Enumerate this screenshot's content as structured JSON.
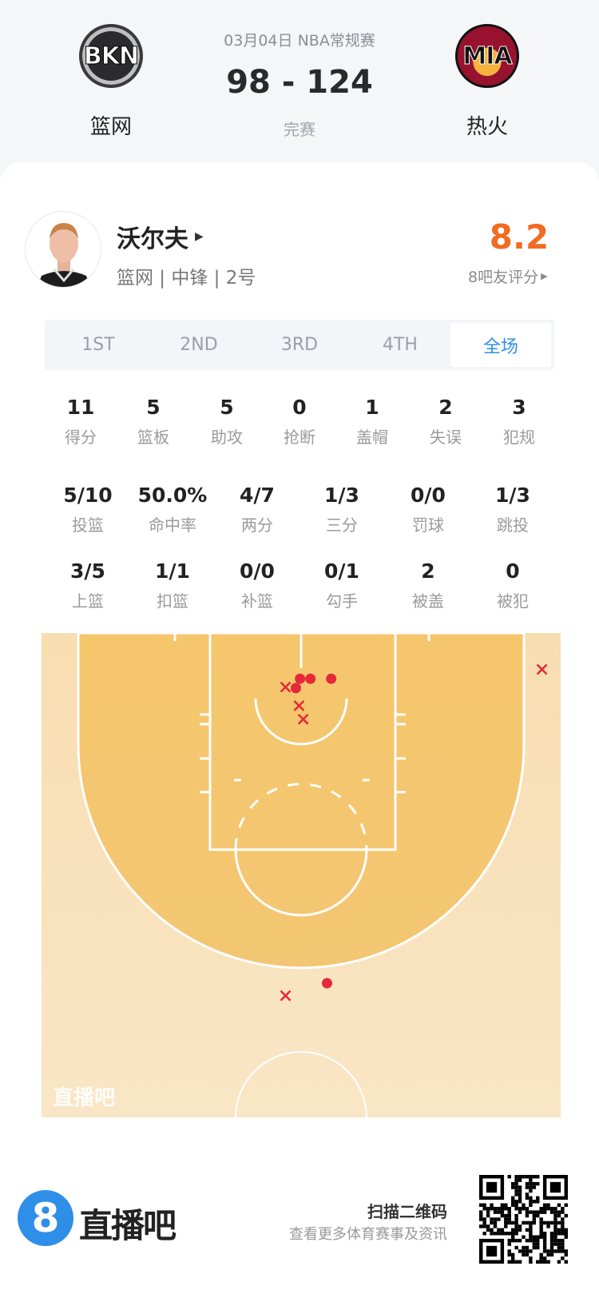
{
  "header": {
    "date_league": "03月04日 NBA常规赛",
    "score": "98 - 124",
    "status": "完赛",
    "home": {
      "abbr": "BKN",
      "name": "篮网"
    },
    "away": {
      "abbr": "MIA",
      "name": "热火"
    }
  },
  "player": {
    "name": "沃尔夫",
    "meta": "篮网 | 中锋 | 2号",
    "rating": "8.2",
    "rating_label": "8吧友评分",
    "rating_color": "#f26b21"
  },
  "tabs": [
    {
      "label": "1ST"
    },
    {
      "label": "2ND"
    },
    {
      "label": "3RD"
    },
    {
      "label": "4TH"
    },
    {
      "label": "全场",
      "active": true
    }
  ],
  "stats_row1": [
    {
      "v": "11",
      "l": "得分"
    },
    {
      "v": "5",
      "l": "篮板"
    },
    {
      "v": "5",
      "l": "助攻"
    },
    {
      "v": "0",
      "l": "抢断"
    },
    {
      "v": "1",
      "l": "盖帽"
    },
    {
      "v": "2",
      "l": "失误"
    },
    {
      "v": "3",
      "l": "犯规"
    }
  ],
  "stats_row2": [
    {
      "v": "5/10",
      "l": "投篮"
    },
    {
      "v": "50.0%",
      "l": "命中率"
    },
    {
      "v": "4/7",
      "l": "两分"
    },
    {
      "v": "1/3",
      "l": "三分"
    },
    {
      "v": "0/0",
      "l": "罚球"
    },
    {
      "v": "1/3",
      "l": "跳投"
    }
  ],
  "stats_row3": [
    {
      "v": "3/5",
      "l": "上篮"
    },
    {
      "v": "1/1",
      "l": "扣篮"
    },
    {
      "v": "0/0",
      "l": "补篮"
    },
    {
      "v": "0/1",
      "l": "勾手"
    },
    {
      "v": "2",
      "l": "被盖"
    },
    {
      "v": "0",
      "l": "被犯"
    }
  ],
  "shot_chart": {
    "watermark": "直播吧",
    "made_color": "#e5283a",
    "units": "feet from left sideline / baseline",
    "shots": [
      {
        "made": true,
        "x": 24.9,
        "y": 4.4
      },
      {
        "made": true,
        "x": 25.9,
        "y": 4.4
      },
      {
        "made": true,
        "x": 27.9,
        "y": 4.4
      },
      {
        "made": true,
        "x": 24.5,
        "y": 5.3
      },
      {
        "made": true,
        "x": 27.5,
        "y": 33.7
      },
      {
        "made": false,
        "x": 23.5,
        "y": 5.2
      },
      {
        "made": false,
        "x": 24.8,
        "y": 7.0
      },
      {
        "made": false,
        "x": 25.2,
        "y": 8.3
      },
      {
        "made": false,
        "x": 48.2,
        "y": 3.5
      },
      {
        "made": false,
        "x": 23.5,
        "y": 34.9
      }
    ]
  },
  "footer": {
    "brand": "直播吧",
    "brand_digit": "8",
    "brand_color": "#2f8ee8",
    "qr_title": "扫描二维码",
    "qr_sub": "查看更多体育赛事及资讯"
  }
}
